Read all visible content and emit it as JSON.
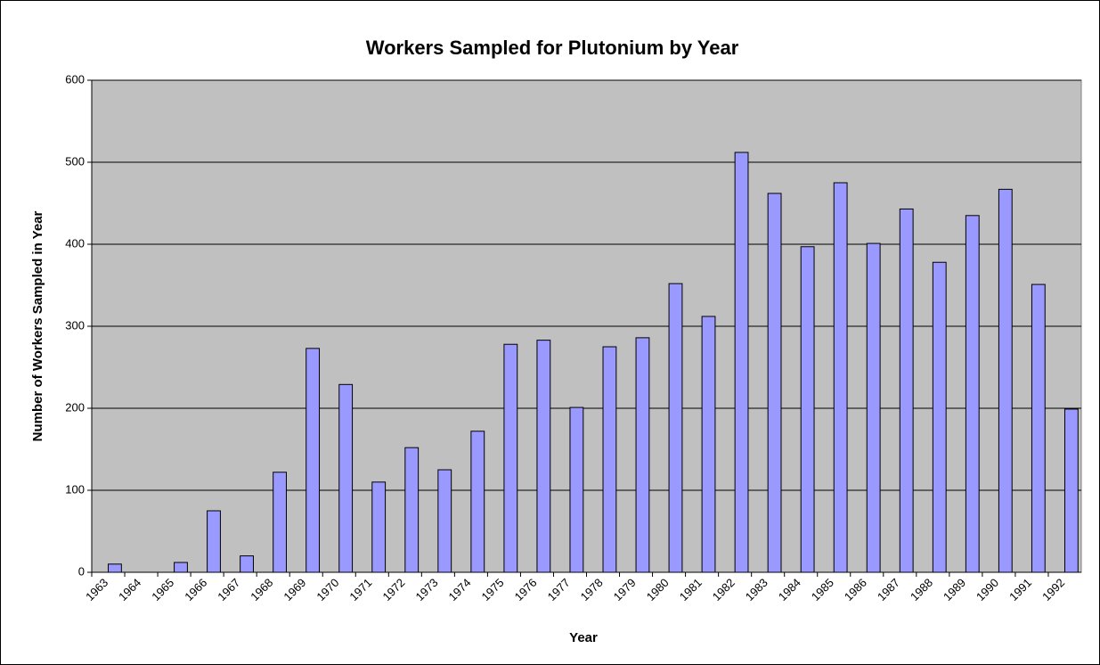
{
  "chart_data": {
    "type": "bar",
    "title": "Workers Sampled for Plutonium by Year",
    "x_label": "Year",
    "y_label": "Number of Workers Sampled in Year",
    "categories": [
      "1963",
      "1964",
      "1965",
      "1966",
      "1967",
      "1968",
      "1969",
      "1970",
      "1971",
      "1972",
      "1973",
      "1974",
      "1975",
      "1976",
      "1977",
      "1978",
      "1979",
      "1980",
      "1981",
      "1982",
      "1983",
      "1984",
      "1985",
      "1986",
      "1987",
      "1988",
      "1989",
      "1990",
      "1991",
      "1992"
    ],
    "values": [
      10,
      0,
      12,
      75,
      20,
      122,
      273,
      229,
      110,
      152,
      125,
      172,
      278,
      283,
      201,
      275,
      286,
      352,
      312,
      512,
      462,
      397,
      475,
      401,
      443,
      378,
      435,
      467,
      351,
      199
    ],
    "color": "#9999ff",
    "plot_background": "#c0c0c0",
    "ylim": [
      0,
      600
    ],
    "yticks": [
      0,
      100,
      200,
      300,
      400,
      500,
      600
    ],
    "grid": true
  }
}
